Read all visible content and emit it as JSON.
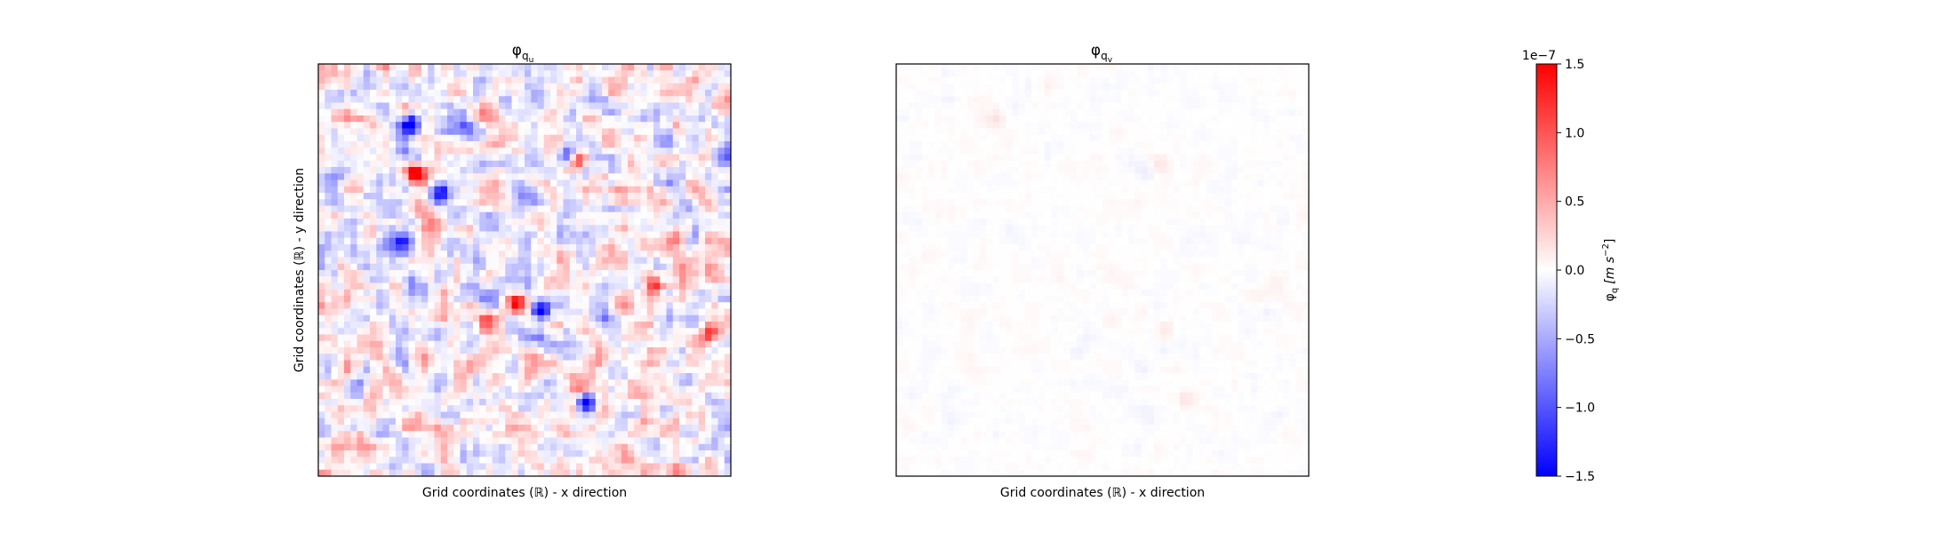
{
  "chart_data": [
    {
      "type": "heatmap",
      "title": "φ_{q_u}",
      "title_main": "φ",
      "title_sub": "q",
      "title_subsub": "u",
      "xlabel": "Grid coordinates (ℝ) - x direction",
      "ylabel": "Grid coordinates (ℝ) - y direction",
      "grid_size": [
        64,
        64
      ],
      "ticks": "none",
      "colormap": "bwr",
      "value_range": [
        -1.5e-07,
        1.5e-07
      ],
      "field_description": "noisy red/blue anomaly field with strong extremes",
      "features": [
        {
          "row": 0.14,
          "col": 0.22,
          "value": -1.4e-07
        },
        {
          "row": 0.26,
          "col": 0.23,
          "value": 1.5e-07
        },
        {
          "row": 0.31,
          "col": 0.29,
          "value": -1.5e-07
        },
        {
          "row": 0.43,
          "col": 0.2,
          "value": -1.3e-07
        },
        {
          "row": 0.22,
          "col": 0.61,
          "value": -1.5e-07
        },
        {
          "row": 0.23,
          "col": 0.63,
          "value": 1.5e-07
        },
        {
          "row": 0.58,
          "col": 0.48,
          "value": 1.4e-07
        },
        {
          "row": 0.6,
          "col": 0.54,
          "value": -1.5e-07
        },
        {
          "row": 0.64,
          "col": 0.38,
          "value": -1.2e-07
        },
        {
          "row": 0.64,
          "col": 0.39,
          "value": 1.4e-07
        },
        {
          "row": 0.82,
          "col": 0.65,
          "value": -1.5e-07
        },
        {
          "row": 0.8,
          "col": 0.64,
          "value": 1.1e-07
        },
        {
          "row": 0.54,
          "col": 0.82,
          "value": 1.5e-07
        },
        {
          "row": 0.65,
          "col": 0.96,
          "value": 1.4e-07
        }
      ]
    },
    {
      "type": "heatmap",
      "title": "φ_{q_v}",
      "title_main": "φ",
      "title_sub": "q",
      "title_subsub": "v",
      "xlabel": "Grid coordinates (ℝ) - x direction",
      "ylabel": "",
      "grid_size": [
        64,
        64
      ],
      "ticks": "none",
      "colormap": "bwr",
      "value_range": [
        -1.5e-07,
        1.5e-07
      ],
      "field_description": "near-zero field with faint anomalies",
      "features": [
        {
          "row": 0.13,
          "col": 0.24,
          "value": 2e-08
        },
        {
          "row": 0.25,
          "col": 0.62,
          "value": -2e-08
        },
        {
          "row": 0.24,
          "col": 0.63,
          "value": 2.5e-08
        },
        {
          "row": 0.65,
          "col": 0.65,
          "value": 1.5e-08
        },
        {
          "row": 0.82,
          "col": 0.71,
          "value": 2e-08
        },
        {
          "row": 0.62,
          "col": 0.52,
          "value": 1e-08
        }
      ]
    }
  ],
  "colorbar": {
    "label": "φ_q [m s^{-2}]",
    "label_main": "φ",
    "label_sub": "q",
    "label_units": "[m s",
    "label_exp": "−2",
    "label_close": "]",
    "offset_label": "1e−7",
    "ticks": [
      "1.5",
      "1.0",
      "0.5",
      "0.0",
      "−0.5",
      "−1.0",
      "−1.5"
    ],
    "tick_values": [
      1.5,
      1.0,
      0.5,
      0.0,
      -0.5,
      -1.0,
      -1.5
    ],
    "range": [
      -1.5,
      1.5
    ],
    "colors": {
      "min": "#0000ff",
      "mid": "#ffffff",
      "max": "#ff0000"
    }
  }
}
